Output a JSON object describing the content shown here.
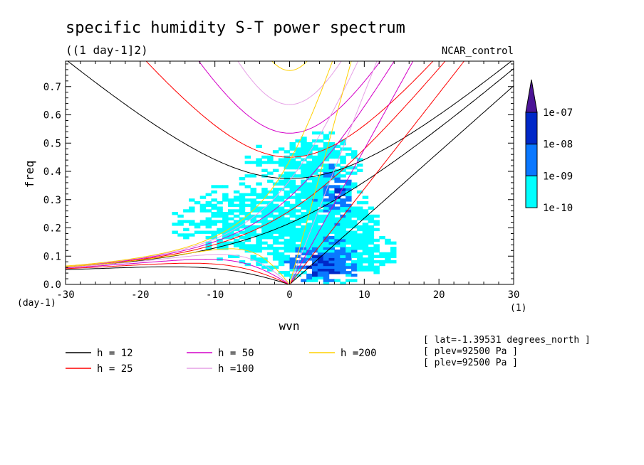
{
  "chart_data": {
    "type": "heatmap",
    "title": "specific humidity S-T power spectrum",
    "subtitle": "((1 day-1]2)",
    "case_name": "NCAR_control",
    "xlabel": "wvn",
    "ylabel": "freq",
    "x_units": "(1)",
    "y_units": "(day-1)",
    "xlim": [
      -30,
      30
    ],
    "ylim": [
      0,
      0.79
    ],
    "x_ticks": [
      "-30",
      "-20",
      "-10",
      "0",
      "10",
      "20",
      "30"
    ],
    "y_ticks": [
      "0.0",
      "0.1",
      "0.2",
      "0.3",
      "0.4",
      "0.5",
      "0.6",
      "0.7"
    ],
    "colorbar": {
      "labels": [
        "1e-10",
        "1e-09",
        "1e-08",
        "1e-07"
      ],
      "colors": [
        "#00ffff",
        "#0a78ff",
        "#0028c8",
        "#4b1496"
      ]
    },
    "dispersion_curves": [
      {
        "name": "h = 12",
        "h": 12,
        "color": "#000000"
      },
      {
        "name": "h = 25",
        "h": 25,
        "color": "#ff0000"
      },
      {
        "name": "h = 50",
        "h": 50,
        "color": "#d400c8"
      },
      {
        "name": "h =100",
        "h": 100,
        "color": "#e6a0e6"
      },
      {
        "name": "h =200",
        "h": 200,
        "color": "#ffd000"
      }
    ],
    "info_lines": [
      "[ lat=-1.39531 degrees_north ]",
      "[ plev=92500 Pa ]",
      "[ plev=92500 Pa ]"
    ]
  }
}
